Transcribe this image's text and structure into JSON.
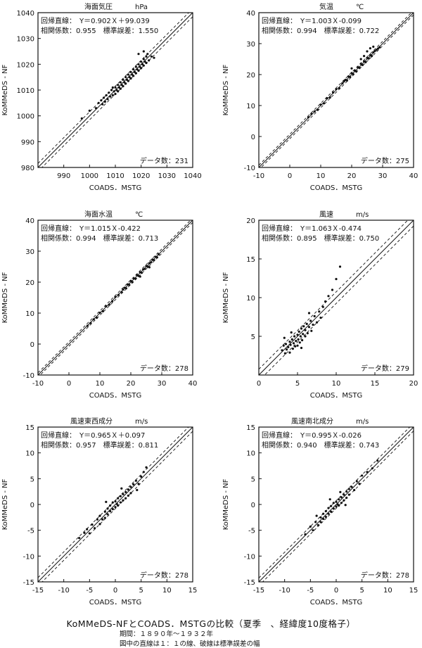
{
  "figure": {
    "title": "KoMMeDS-NFとCOADS．MSTGの比較（夏季　、経緯度10度格子）",
    "period": "期間：１８９０年～１９３２年",
    "note": "図中の直線は１：１の線、破線は標準誤差の幅"
  },
  "chart_data": [
    {
      "type": "scatter",
      "title": "海面気圧",
      "unit": "hPa",
      "xlabel": "COADS．MSTG",
      "ylabel": "KoMMeDS - NF",
      "xlim": [
        980,
        1040
      ],
      "ylim": [
        980,
        1040
      ],
      "xticks": [
        990,
        1000,
        1010,
        1020,
        1030,
        1040
      ],
      "yticks": [
        980,
        990,
        1000,
        1010,
        1020,
        1030,
        1040
      ],
      "regression_text": "回帰直線：　Y＝0.902Ｘ＋99.039",
      "stats_text": "相関係数：0.955　標準誤差：1.550",
      "count_text": "データ数：231",
      "slope": 0.902,
      "intercept": 99.039,
      "std_error": 1.55,
      "r": 0.955,
      "n": 231,
      "points": [
        [
          1002.5,
          1003
        ],
        [
          1003.5,
          1005
        ],
        [
          1004.5,
          1006
        ],
        [
          1005,
          1004.5
        ],
        [
          1005.5,
          1007
        ],
        [
          1006,
          1005.5
        ],
        [
          1006.5,
          1008
        ],
        [
          1007,
          1006.5
        ],
        [
          1007.5,
          1009
        ],
        [
          1008,
          1007.5
        ],
        [
          1008.5,
          1010
        ],
        [
          1009,
          1008
        ],
        [
          1009,
          1011
        ],
        [
          1009.5,
          1009.5
        ],
        [
          1010,
          1008.5
        ],
        [
          1010,
          1011
        ],
        [
          1010.5,
          1010
        ],
        [
          1011,
          1012
        ],
        [
          1011,
          1009.5
        ],
        [
          1011.5,
          1011
        ],
        [
          1012,
          1013
        ],
        [
          1012,
          1010.5
        ],
        [
          1012.5,
          1012
        ],
        [
          1013,
          1014
        ],
        [
          1013,
          1011.5
        ],
        [
          1013.5,
          1013
        ],
        [
          1014,
          1015
        ],
        [
          1014,
          1012.5
        ],
        [
          1014.5,
          1014
        ],
        [
          1015,
          1016
        ],
        [
          1015,
          1013.5
        ],
        [
          1015.5,
          1015
        ],
        [
          1016,
          1017
        ],
        [
          1016,
          1014.5
        ],
        [
          1016.5,
          1016
        ],
        [
          1017,
          1018
        ],
        [
          1017,
          1015.5
        ],
        [
          1017.5,
          1017
        ],
        [
          1018,
          1019
        ],
        [
          1018,
          1016.5
        ],
        [
          1018.5,
          1018
        ],
        [
          1019,
          1020
        ],
        [
          1019,
          1017.5
        ],
        [
          1019.5,
          1019
        ],
        [
          1020,
          1021
        ],
        [
          1020,
          1018.5
        ],
        [
          1020.5,
          1020
        ],
        [
          1021,
          1022
        ],
        [
          1021,
          1019.5
        ],
        [
          1021.5,
          1021
        ],
        [
          1022,
          1023
        ],
        [
          1022,
          1020.5
        ],
        [
          1022.5,
          1024
        ],
        [
          1023,
          1021.5
        ],
        [
          1024,
          1023
        ],
        [
          1025,
          1022.5
        ],
        [
          997,
          999
        ],
        [
          1000,
          1002
        ],
        [
          1019,
          1024
        ],
        [
          1021,
          1025
        ]
      ]
    },
    {
      "type": "scatter",
      "title": "気温",
      "unit": "℃",
      "xlabel": "COADS．MSTG",
      "ylabel": "KoMMeDS - NF",
      "xlim": [
        -10,
        40
      ],
      "ylim": [
        -10,
        40
      ],
      "xticks": [
        -10,
        0,
        10,
        20,
        30,
        40
      ],
      "yticks": [
        -10,
        0,
        10,
        20,
        30,
        40
      ],
      "regression_text": "回帰直線：　Y＝1.003Ｘ-0.099",
      "stats_text": "相関係数：0.994　標準誤差：0.722",
      "count_text": "データ数：275",
      "slope": 1.003,
      "intercept": -0.099,
      "std_error": 0.722,
      "r": 0.994,
      "n": 275,
      "points": [
        [
          6,
          6.2
        ],
        [
          7,
          7.3
        ],
        [
          8,
          8.1
        ],
        [
          9,
          8.6
        ],
        [
          10,
          10.3
        ],
        [
          11,
          10.7
        ],
        [
          12,
          12.4
        ],
        [
          13,
          12.6
        ],
        [
          14,
          14.2
        ],
        [
          15,
          15.3
        ],
        [
          16,
          15.6
        ],
        [
          17,
          17.2
        ],
        [
          17.5,
          17.9
        ],
        [
          18,
          18.3
        ],
        [
          18.5,
          18.1
        ],
        [
          19,
          19.4
        ],
        [
          19.5,
          19.2
        ],
        [
          20,
          20.5
        ],
        [
          20.5,
          20.1
        ],
        [
          21,
          21.3
        ],
        [
          21.5,
          21.0
        ],
        [
          22,
          22.4
        ],
        [
          22.5,
          22.2
        ],
        [
          23,
          23.5
        ],
        [
          23.5,
          23.1
        ],
        [
          24,
          24.3
        ],
        [
          24.5,
          24.0
        ],
        [
          25,
          25.4
        ],
        [
          25.5,
          25.2
        ],
        [
          26,
          26.3
        ],
        [
          26.5,
          26.0
        ],
        [
          27,
          27.2
        ],
        [
          27.5,
          27.6
        ],
        [
          28,
          28.0
        ],
        [
          28.5,
          28.4
        ],
        [
          29,
          28.8
        ],
        [
          24,
          26
        ],
        [
          26,
          28.5
        ],
        [
          25,
          27.5
        ],
        [
          20,
          22
        ],
        [
          23,
          25
        ],
        [
          27,
          29
        ]
      ]
    },
    {
      "type": "scatter",
      "title": "海面水温",
      "unit": "℃",
      "xlabel": "COADS．MSTG",
      "ylabel": "KoMMeDS - NF",
      "xlim": [
        -10,
        40
      ],
      "ylim": [
        -10,
        40
      ],
      "xticks": [
        -10,
        0,
        10,
        20,
        30,
        40
      ],
      "yticks": [
        -10,
        0,
        10,
        20,
        30,
        40
      ],
      "regression_text": "回帰直線：　Y＝1.015Ｘ-0.422",
      "stats_text": "相関係数：0.994　標準誤差：0.713",
      "count_text": "データ数：278",
      "slope": 1.015,
      "intercept": -0.422,
      "std_error": 0.713,
      "r": 0.994,
      "n": 278,
      "points": [
        [
          6,
          5.9
        ],
        [
          7,
          6.8
        ],
        [
          8,
          8.0
        ],
        [
          9,
          8.5
        ],
        [
          10,
          10.1
        ],
        [
          11,
          10.6
        ],
        [
          12,
          12.2
        ],
        [
          13,
          12.7
        ],
        [
          14,
          13.8
        ],
        [
          15,
          15.2
        ],
        [
          16,
          15.9
        ],
        [
          17,
          16.8
        ],
        [
          17.5,
          17.6
        ],
        [
          18,
          18.2
        ],
        [
          18.5,
          18.0
        ],
        [
          19,
          19.3
        ],
        [
          19.5,
          19.1
        ],
        [
          20,
          20.4
        ],
        [
          20.5,
          20.0
        ],
        [
          21,
          21.2
        ],
        [
          21.5,
          21.1
        ],
        [
          22,
          22.3
        ],
        [
          22.5,
          22.0
        ],
        [
          23,
          23.2
        ],
        [
          23.5,
          23.0
        ],
        [
          24,
          24.1
        ],
        [
          24.5,
          24.3
        ],
        [
          25,
          25.2
        ],
        [
          25.5,
          25.0
        ],
        [
          26,
          26.1
        ],
        [
          26.5,
          26.4
        ],
        [
          27,
          27.3
        ],
        [
          27.5,
          27.1
        ],
        [
          28,
          28.2
        ],
        [
          28.5,
          28.0
        ],
        [
          29,
          29.0
        ],
        [
          26,
          24.8
        ],
        [
          23,
          21.8
        ]
      ]
    },
    {
      "type": "scatter",
      "title": "風速",
      "unit": "m/s",
      "xlabel": "COADS．MSTG",
      "ylabel": "KoMMeDS - NF",
      "xlim": [
        0,
        20
      ],
      "ylim": [
        0,
        20
      ],
      "xticks": [
        0,
        5,
        10,
        15,
        20
      ],
      "yticks": [
        5,
        10,
        15,
        20
      ],
      "regression_text": "回帰直線：　Y＝1.063Ｘ-0.474",
      "stats_text": "相関係数：0.895　標準誤差：0.750",
      "count_text": "データ数：279",
      "slope": 1.063,
      "intercept": -0.474,
      "std_error": 0.75,
      "r": 0.895,
      "n": 279,
      "points": [
        [
          3,
          3.2
        ],
        [
          3.2,
          3.8
        ],
        [
          3.4,
          2.8
        ],
        [
          3.5,
          4.0
        ],
        [
          3.6,
          3.3
        ],
        [
          3.8,
          3.6
        ],
        [
          4,
          4.3
        ],
        [
          4,
          2.9
        ],
        [
          4.1,
          3.9
        ],
        [
          4.3,
          4.6
        ],
        [
          4.4,
          3.4
        ],
        [
          4.5,
          4.1
        ],
        [
          4.6,
          5.0
        ],
        [
          4.7,
          3.7
        ],
        [
          4.8,
          4.4
        ],
        [
          5,
          5.2
        ],
        [
          5,
          3.8
        ],
        [
          5.1,
          4.6
        ],
        [
          5.2,
          5.6
        ],
        [
          5.3,
          4.2
        ],
        [
          5.4,
          5.0
        ],
        [
          5.5,
          6.0
        ],
        [
          5.6,
          4.5
        ],
        [
          5.7,
          5.3
        ],
        [
          5.8,
          6.3
        ],
        [
          6,
          5.0
        ],
        [
          6,
          5.8
        ],
        [
          6.2,
          6.6
        ],
        [
          6.3,
          5.4
        ],
        [
          6.5,
          6.2
        ],
        [
          6.7,
          7.0
        ],
        [
          6.8,
          5.7
        ],
        [
          7,
          6.5
        ],
        [
          7.2,
          7.6
        ],
        [
          7.5,
          6.8
        ],
        [
          7.8,
          8.2
        ],
        [
          8,
          7.4
        ],
        [
          8.3,
          8.8
        ],
        [
          8.6,
          9.5
        ],
        [
          9,
          10.2
        ],
        [
          9.5,
          11.0
        ],
        [
          10,
          12.4
        ],
        [
          10.5,
          14.0
        ],
        [
          4.2,
          5.5
        ],
        [
          5.5,
          3.5
        ],
        [
          6.5,
          8.0
        ],
        [
          3.3,
          4.8
        ]
      ]
    },
    {
      "type": "scatter",
      "title": "風速東西成分",
      "unit": "m/s",
      "xlabel": "COADS．MSTG",
      "ylabel": "KoMMeDS - NF",
      "xlim": [
        -15,
        15
      ],
      "ylim": [
        -15,
        15
      ],
      "xticks": [
        -15,
        -10,
        -5,
        0,
        5,
        10,
        15
      ],
      "yticks": [
        -15,
        -10,
        -5,
        0,
        5,
        10,
        15
      ],
      "regression_text": "回帰直線：　Y＝0.965Ｘ＋0.097",
      "stats_text": "相関係数：0.957　標準誤差：0.811",
      "count_text": "データ数：278",
      "slope": 0.965,
      "intercept": 0.097,
      "std_error": 0.811,
      "r": 0.957,
      "n": 278,
      "points": [
        [
          -6,
          -5.5
        ],
        [
          -5.5,
          -4.8
        ],
        [
          -5,
          -5.6
        ],
        [
          -4.5,
          -3.9
        ],
        [
          -4,
          -4.6
        ],
        [
          -3.5,
          -2.9
        ],
        [
          -3,
          -3.8
        ],
        [
          -3,
          -2.2
        ],
        [
          -2.5,
          -2.9
        ],
        [
          -2,
          -1.4
        ],
        [
          -2,
          -2.6
        ],
        [
          -1.5,
          -0.8
        ],
        [
          -1.5,
          -1.9
        ],
        [
          -1,
          -0.2
        ],
        [
          -1,
          -1.3
        ],
        [
          -0.5,
          0.4
        ],
        [
          -0.5,
          -0.9
        ],
        [
          0,
          0.6
        ],
        [
          0,
          -0.5
        ],
        [
          0.3,
          0.1
        ],
        [
          0.5,
          1.2
        ],
        [
          0.5,
          -0.2
        ],
        [
          1,
          1.6
        ],
        [
          1,
          0.4
        ],
        [
          1.5,
          2.0
        ],
        [
          1.5,
          0.8
        ],
        [
          2,
          2.4
        ],
        [
          2,
          1.2
        ],
        [
          2.5,
          2.9
        ],
        [
          2.5,
          1.7
        ],
        [
          3,
          3.4
        ],
        [
          3,
          2.2
        ],
        [
          3.5,
          3.9
        ],
        [
          4,
          4.6
        ],
        [
          4.5,
          4.0
        ],
        [
          5,
          5.4
        ],
        [
          5.5,
          6.3
        ],
        [
          6,
          7.2
        ],
        [
          -7,
          -6.5
        ],
        [
          -1.8,
          0.5
        ],
        [
          1.2,
          3.1
        ],
        [
          4.2,
          2.8
        ]
      ]
    },
    {
      "type": "scatter",
      "title": "風速南北成分",
      "unit": "m/s",
      "xlabel": "COADS．MSTG",
      "ylabel": "KoMMeDS - NF",
      "xlim": [
        -15,
        15
      ],
      "ylim": [
        -15,
        15
      ],
      "xticks": [
        -15,
        -10,
        -5,
        0,
        5,
        10,
        15
      ],
      "yticks": [
        -15,
        -10,
        -5,
        0,
        5,
        10,
        15
      ],
      "regression_text": "回帰直線：　Y＝0.995Ｘ-0.026",
      "stats_text": "相関係数：0.940　標準誤差：0.743",
      "count_text": "データ数：278",
      "slope": 0.995,
      "intercept": -0.026,
      "std_error": 0.743,
      "r": 0.94,
      "n": 278,
      "points": [
        [
          -6,
          -5.8
        ],
        [
          -5,
          -4.3
        ],
        [
          -4.5,
          -5.0
        ],
        [
          -4,
          -3.4
        ],
        [
          -3.5,
          -4.0
        ],
        [
          -3,
          -2.5
        ],
        [
          -3,
          -3.4
        ],
        [
          -2.5,
          -1.8
        ],
        [
          -2.5,
          -2.8
        ],
        [
          -2,
          -1.3
        ],
        [
          -2,
          -2.4
        ],
        [
          -1.5,
          -0.7
        ],
        [
          -1.5,
          -1.8
        ],
        [
          -1,
          -0.3
        ],
        [
          -1,
          -1.4
        ],
        [
          -0.5,
          0.3
        ],
        [
          -0.5,
          -0.8
        ],
        [
          0,
          0.5
        ],
        [
          0,
          -0.4
        ],
        [
          0.3,
          0.0
        ],
        [
          0.5,
          1.0
        ],
        [
          0.5,
          -0.2
        ],
        [
          1,
          1.4
        ],
        [
          1,
          0.3
        ],
        [
          1.5,
          1.9
        ],
        [
          1.5,
          0.8
        ],
        [
          2,
          2.5
        ],
        [
          2,
          1.3
        ],
        [
          2.5,
          3.0
        ],
        [
          2.5,
          1.9
        ],
        [
          3,
          3.4
        ],
        [
          3.5,
          2.8
        ],
        [
          4,
          4.5
        ],
        [
          4.5,
          4.0
        ],
        [
          5,
          5.6
        ],
        [
          6,
          6.3
        ],
        [
          7,
          7.0
        ],
        [
          8,
          8.5
        ],
        [
          -1.2,
          1.0
        ],
        [
          1.8,
          -0.1
        ],
        [
          -3.8,
          -2.2
        ],
        [
          0.8,
          2.4
        ]
      ]
    }
  ]
}
